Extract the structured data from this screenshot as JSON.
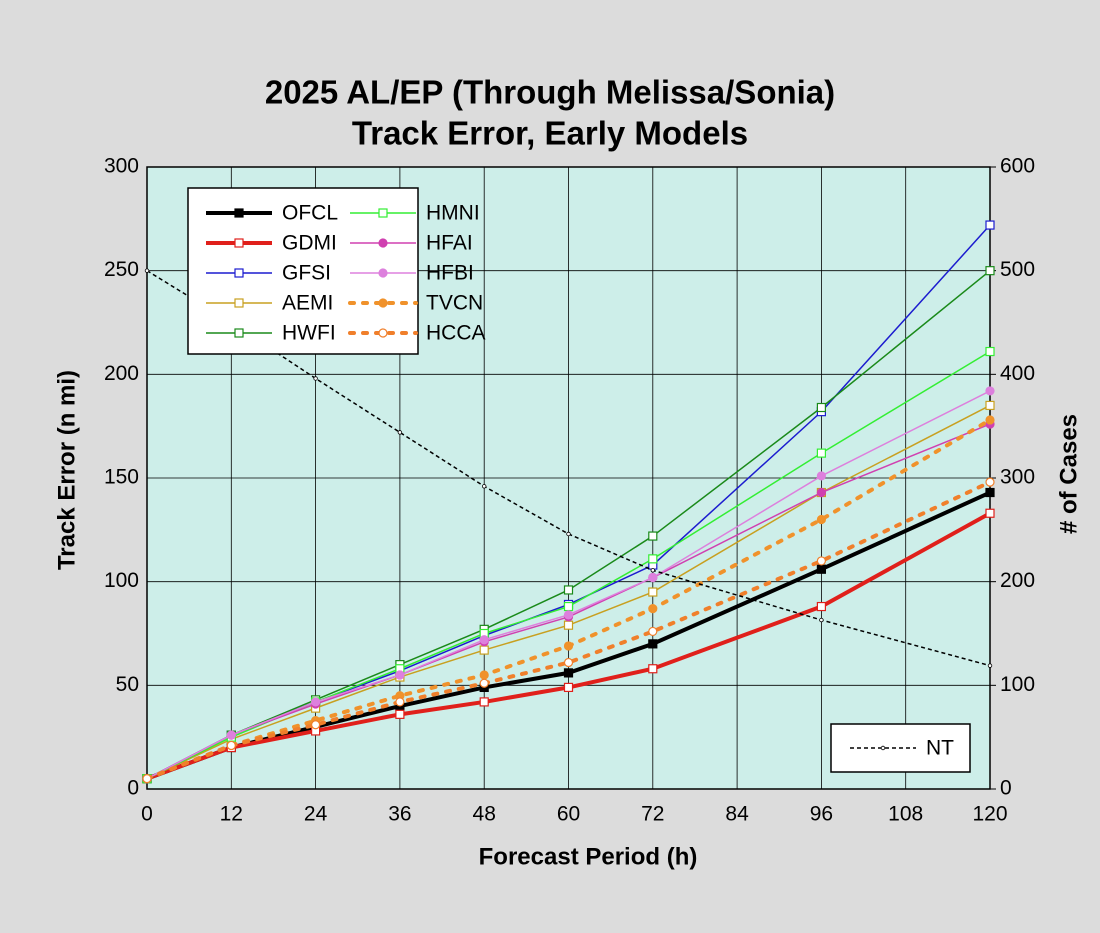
{
  "chart_data": {
    "type": "line",
    "title": "2025 AL/EP (Through Melissa/Sonia)",
    "subtitle": "Track Error, Early Models",
    "x_label": "Forecast Period (h)",
    "y_label": "Track Error (n mi)",
    "y2_label": "# of Cases",
    "x": [
      0,
      12,
      24,
      36,
      48,
      60,
      72,
      96,
      120
    ],
    "xlim": [
      0,
      120
    ],
    "xticks": [
      0,
      12,
      24,
      36,
      48,
      60,
      72,
      84,
      96,
      108,
      120
    ],
    "ylim": [
      0,
      300
    ],
    "yticks": [
      0,
      50,
      100,
      150,
      200,
      250,
      300
    ],
    "y2lim": [
      0,
      600
    ],
    "y2ticks": [
      0,
      100,
      200,
      300,
      400,
      500,
      600
    ],
    "grid": true,
    "series": [
      {
        "name": "OFCL",
        "color": "#000000",
        "marker": "square-filled",
        "width": 4,
        "values": [
          5,
          20,
          30,
          40,
          49,
          56,
          70,
          106,
          143
        ]
      },
      {
        "name": "GDMI",
        "color": "#e0201b",
        "marker": "square-open",
        "width": 4,
        "values": [
          5,
          20,
          28,
          36,
          42,
          49,
          58,
          88,
          133
        ]
      },
      {
        "name": "GFSI",
        "color": "#1c1ccf",
        "marker": "square-open",
        "width": 1.5,
        "values": [
          5,
          26,
          42,
          57,
          74,
          89,
          108,
          182,
          272
        ]
      },
      {
        "name": "AEMI",
        "color": "#c8a020",
        "marker": "square-open",
        "width": 1.5,
        "values": [
          5,
          24,
          39,
          54,
          67,
          79,
          95,
          143,
          185
        ]
      },
      {
        "name": "HWFI",
        "color": "#1a8a1a",
        "marker": "square-open",
        "width": 1.5,
        "values": [
          5,
          26,
          43,
          60,
          77,
          96,
          122,
          184,
          250
        ]
      },
      {
        "name": "HMNI",
        "color": "#33ee33",
        "marker": "square-open",
        "width": 1.5,
        "values": [
          5,
          25,
          42,
          58,
          75,
          88,
          111,
          162,
          211
        ]
      },
      {
        "name": "HFAI",
        "color": "#d040b0",
        "marker": "circle-filled",
        "width": 1.5,
        "values": [
          5,
          26,
          41,
          55,
          71,
          83,
          102,
          143,
          176
        ]
      },
      {
        "name": "HFBI",
        "color": "#dd80dd",
        "marker": "circle-filled",
        "width": 1.5,
        "values": [
          5,
          26,
          42,
          55,
          72,
          84,
          102,
          151,
          192
        ]
      },
      {
        "name": "TVCN",
        "color": "#f0922b",
        "marker": "circle-filled",
        "dashed": true,
        "width": 4,
        "values": [
          5,
          21,
          33,
          45,
          55,
          69,
          87,
          130,
          178
        ]
      },
      {
        "name": "HCCA",
        "color": "#f07f2b",
        "marker": "circle-open",
        "dashed": true,
        "width": 4,
        "values": [
          5,
          21,
          31,
          42,
          51,
          61,
          76,
          110,
          148
        ]
      },
      {
        "name": "NT",
        "color": "#000000",
        "marker": "dot",
        "dashed": true,
        "width": 1.5,
        "axis": "y2",
        "values": [
          500,
          450,
          396,
          344,
          292,
          246,
          211,
          163,
          119
        ]
      }
    ]
  }
}
